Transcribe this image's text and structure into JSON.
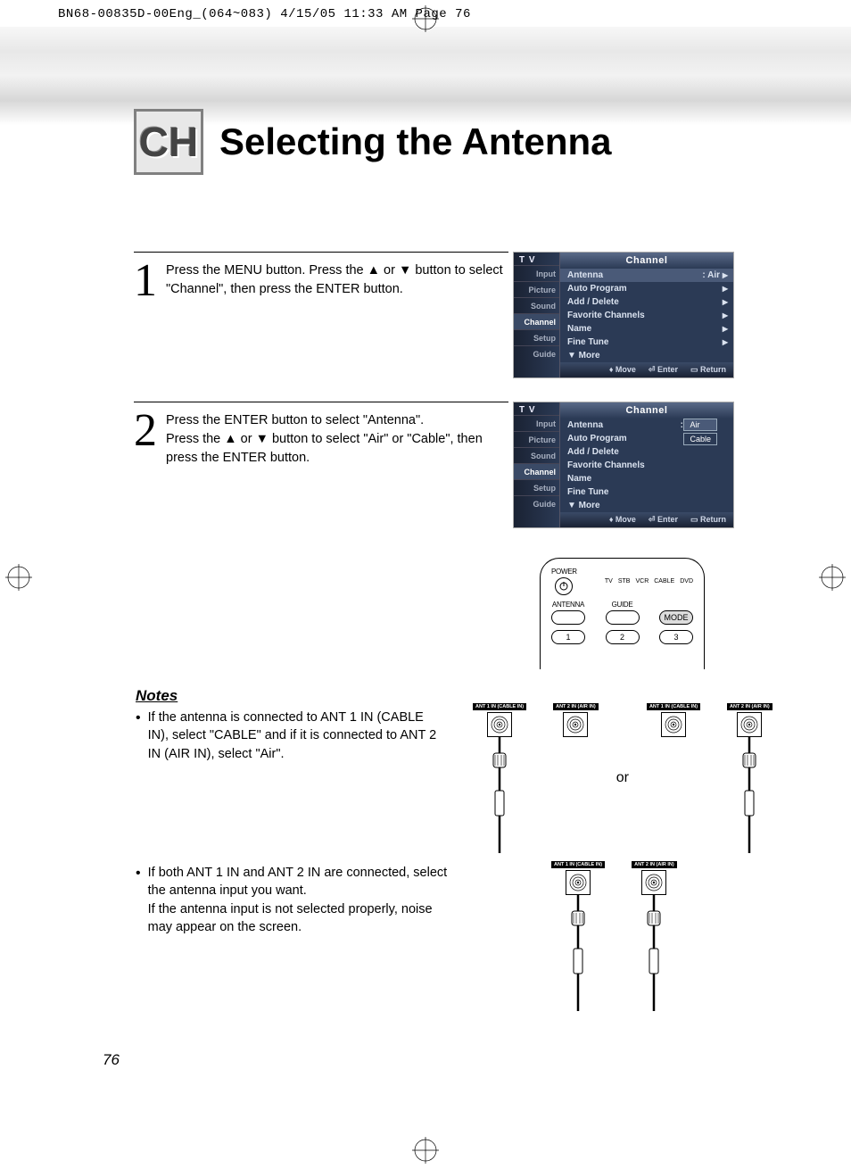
{
  "print_header": "BN68-00835D-00Eng_(064~083)  4/15/05  11:33 AM  Page 76",
  "ch_badge": "CH",
  "page_title": "Selecting the Antenna",
  "steps": [
    {
      "num": "1",
      "text": "Press the MENU button. Press the ▲ or ▼ button to select \"Channel\", then press the ENTER button."
    },
    {
      "num": "2",
      "text": "Press the ENTER button to select \"Antenna\".\nPress the ▲ or ▼ button to select \"Air\" or \"Cable\", then press the ENTER button."
    }
  ],
  "osd": {
    "tv_tag": "T V",
    "title": "Channel",
    "side_tabs": [
      "Input",
      "Picture",
      "Sound",
      "Channel",
      "Setup",
      "Guide"
    ],
    "active_tab_index": 3,
    "rows": [
      {
        "label": "Antenna",
        "value": ": Air",
        "arrow": true
      },
      {
        "label": "Auto Program",
        "value": "",
        "arrow": true
      },
      {
        "label": "Add / Delete",
        "value": "",
        "arrow": true
      },
      {
        "label": "Favorite Channels",
        "value": "",
        "arrow": true
      },
      {
        "label": "Name",
        "value": "",
        "arrow": true
      },
      {
        "label": "Fine Tune",
        "value": "",
        "arrow": true
      },
      {
        "label": "▼ More",
        "value": "",
        "arrow": false
      }
    ],
    "footer": {
      "move": "Move",
      "enter": "Enter",
      "return": "Return"
    },
    "popup_options": [
      "Air",
      "Cable"
    ],
    "popup_label": "Antenna",
    "popup_prefix": ":"
  },
  "remote": {
    "power": "POWER",
    "modes": [
      "TV",
      "STB",
      "VCR",
      "CABLE",
      "DVD"
    ],
    "antenna": "ANTENNA",
    "guide": "GUIDE",
    "mode": "MODE",
    "nums": [
      "1",
      "2",
      "3"
    ]
  },
  "notes": {
    "heading": "Notes",
    "items": [
      "If the antenna is connected to ANT 1 IN (CABLE IN), select \"CABLE\" and if it is connected to ANT 2 IN (AIR IN), select \"Air\".",
      "If both ANT 1 IN and ANT 2 IN are connected, select the antenna input you want.\nIf the antenna input is not selected properly, noise may appear on the screen."
    ]
  },
  "antenna": {
    "label1": "ANT 1 IN (CABLE IN)",
    "label2": "ANT 2 IN (AIR IN)",
    "or": "or"
  },
  "page_num": "76",
  "colors": {
    "osd_bg": "#2b3a55",
    "osd_grad_top": "#5a6a88",
    "osd_text": "#dbe3f0",
    "highlight": "#4a5a78"
  }
}
